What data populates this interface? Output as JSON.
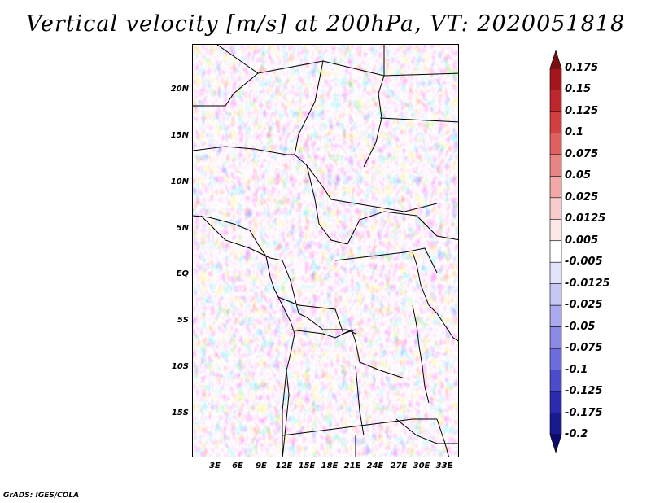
{
  "title": "Vertical velocity [m/s] at 200hPa, VT: 2020051818",
  "credit": "GrADS: IGES/COLA",
  "lat_labels": [
    "20N",
    "15N",
    "10N",
    "5N",
    "EQ",
    "5S",
    "10S",
    "15S"
  ],
  "lat_values": [
    20,
    15,
    10,
    5,
    0,
    -5,
    -10,
    -15
  ],
  "lon_labels": [
    "3E",
    "6E",
    "9E",
    "12E",
    "15E",
    "18E",
    "21E",
    "24E",
    "27E",
    "30E",
    "33E"
  ],
  "lon_values": [
    3,
    6,
    9,
    12,
    15,
    18,
    21,
    24,
    27,
    30,
    33
  ],
  "colorbar": {
    "labels": [
      "0.175",
      "0.15",
      "0.125",
      "0.1",
      "0.075",
      "0.05",
      "0.025",
      "0.0125",
      "0.005",
      "-0.005",
      "-0.0125",
      "-0.025",
      "-0.05",
      "-0.075",
      "-0.1",
      "-0.125",
      "-0.175",
      "-0.2"
    ],
    "colors": [
      "#7a0f12",
      "#a5161c",
      "#c0272d",
      "#d43f3f",
      "#e06060",
      "#ea8585",
      "#f2a8a6",
      "#f8cccb",
      "#fde8e8",
      "#ffffff",
      "#e3e3fb",
      "#c7c7f5",
      "#a9a9ef",
      "#8b8be6",
      "#6c6cdc",
      "#4b4bcc",
      "#2b2bb0",
      "#191990",
      "#0a0a70"
    ]
  },
  "chart_data": {
    "type": "heatmap",
    "title": "Vertical velocity [m/s] at 200hPa, VT: 2020051818",
    "variable": "Vertical velocity",
    "units": "m/s",
    "level": "200hPa",
    "valid_time": "2020051818",
    "xlim": [
      0,
      35
    ],
    "ylim": [
      -20,
      25
    ],
    "contour_levels": [
      -0.2,
      -0.175,
      -0.125,
      -0.1,
      -0.075,
      -0.05,
      -0.025,
      -0.0125,
      -0.005,
      0.005,
      0.0125,
      0.025,
      0.05,
      0.075,
      0.1,
      0.125,
      0.15,
      0.175
    ]
  }
}
